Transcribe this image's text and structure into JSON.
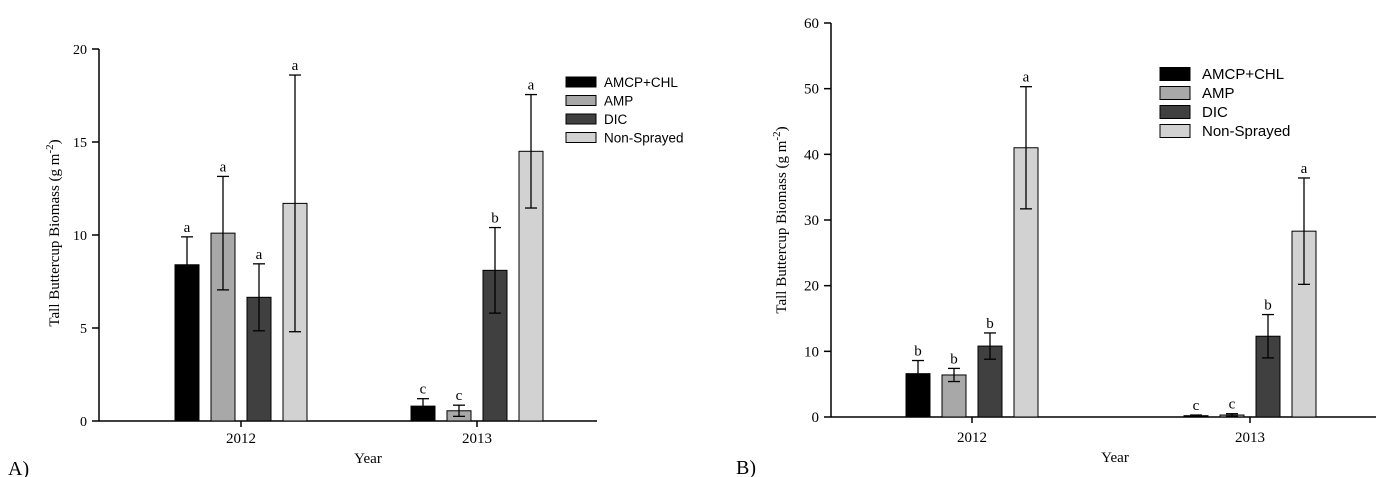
{
  "chart_data": [
    {
      "type": "bar",
      "panel_label": "A)",
      "title": "",
      "xlabel": "Year",
      "ylabel_main": "Tall Buttercup Biomass  (g m",
      "ylabel_sup": "-2",
      "ylabel_close": ")",
      "categories": [
        "2012",
        "2013"
      ],
      "ylim": [
        0,
        20
      ],
      "yticks": [
        0,
        5,
        10,
        15,
        20
      ],
      "legend_position": "top-right",
      "series": [
        {
          "name": "AMCP+CHL",
          "color": "#000000",
          "values": [
            8.4,
            0.8
          ],
          "errors": [
            1.5,
            0.4
          ],
          "letters": [
            "a",
            "c"
          ]
        },
        {
          "name": "AMP",
          "color": "#a8a8a8",
          "values": [
            10.1,
            0.55
          ],
          "errors": [
            3.05,
            0.3
          ],
          "letters": [
            "a",
            "c"
          ]
        },
        {
          "name": "DIC",
          "color": "#404040",
          "values": [
            6.65,
            8.1
          ],
          "errors": [
            1.8,
            2.3
          ],
          "letters": [
            "a",
            "b"
          ]
        },
        {
          "name": "Non-Sprayed",
          "color": "#d2d2d2",
          "values": [
            11.7,
            14.5
          ],
          "errors": [
            6.9,
            3.05
          ],
          "letters": [
            "a",
            "a"
          ]
        }
      ]
    },
    {
      "type": "bar",
      "panel_label": "B)",
      "title": "",
      "xlabel": "Year",
      "ylabel_main": "Tall Buttercup Biomass  (g m",
      "ylabel_sup": "-2",
      "ylabel_close": ")",
      "categories": [
        "2012",
        "2013"
      ],
      "ylim": [
        0,
        60
      ],
      "yticks": [
        0,
        10,
        20,
        30,
        40,
        50,
        60
      ],
      "legend_position": "top-right",
      "series": [
        {
          "name": "AMCP+CHL",
          "color": "#000000",
          "values": [
            6.6,
            0.2
          ],
          "errors": [
            2.0,
            0.1
          ],
          "letters": [
            "b",
            "c"
          ]
        },
        {
          "name": "AMP",
          "color": "#a8a8a8",
          "values": [
            6.4,
            0.3
          ],
          "errors": [
            1.0,
            0.2
          ],
          "letters": [
            "b",
            "c"
          ]
        },
        {
          "name": "DIC",
          "color": "#404040",
          "values": [
            10.8,
            12.3
          ],
          "errors": [
            2.0,
            3.3
          ],
          "letters": [
            "b",
            "b"
          ]
        },
        {
          "name": "Non-Sprayed",
          "color": "#d2d2d2",
          "values": [
            41.0,
            28.3
          ],
          "errors": [
            9.3,
            8.1
          ],
          "letters": [
            "a",
            "a"
          ]
        }
      ]
    }
  ]
}
